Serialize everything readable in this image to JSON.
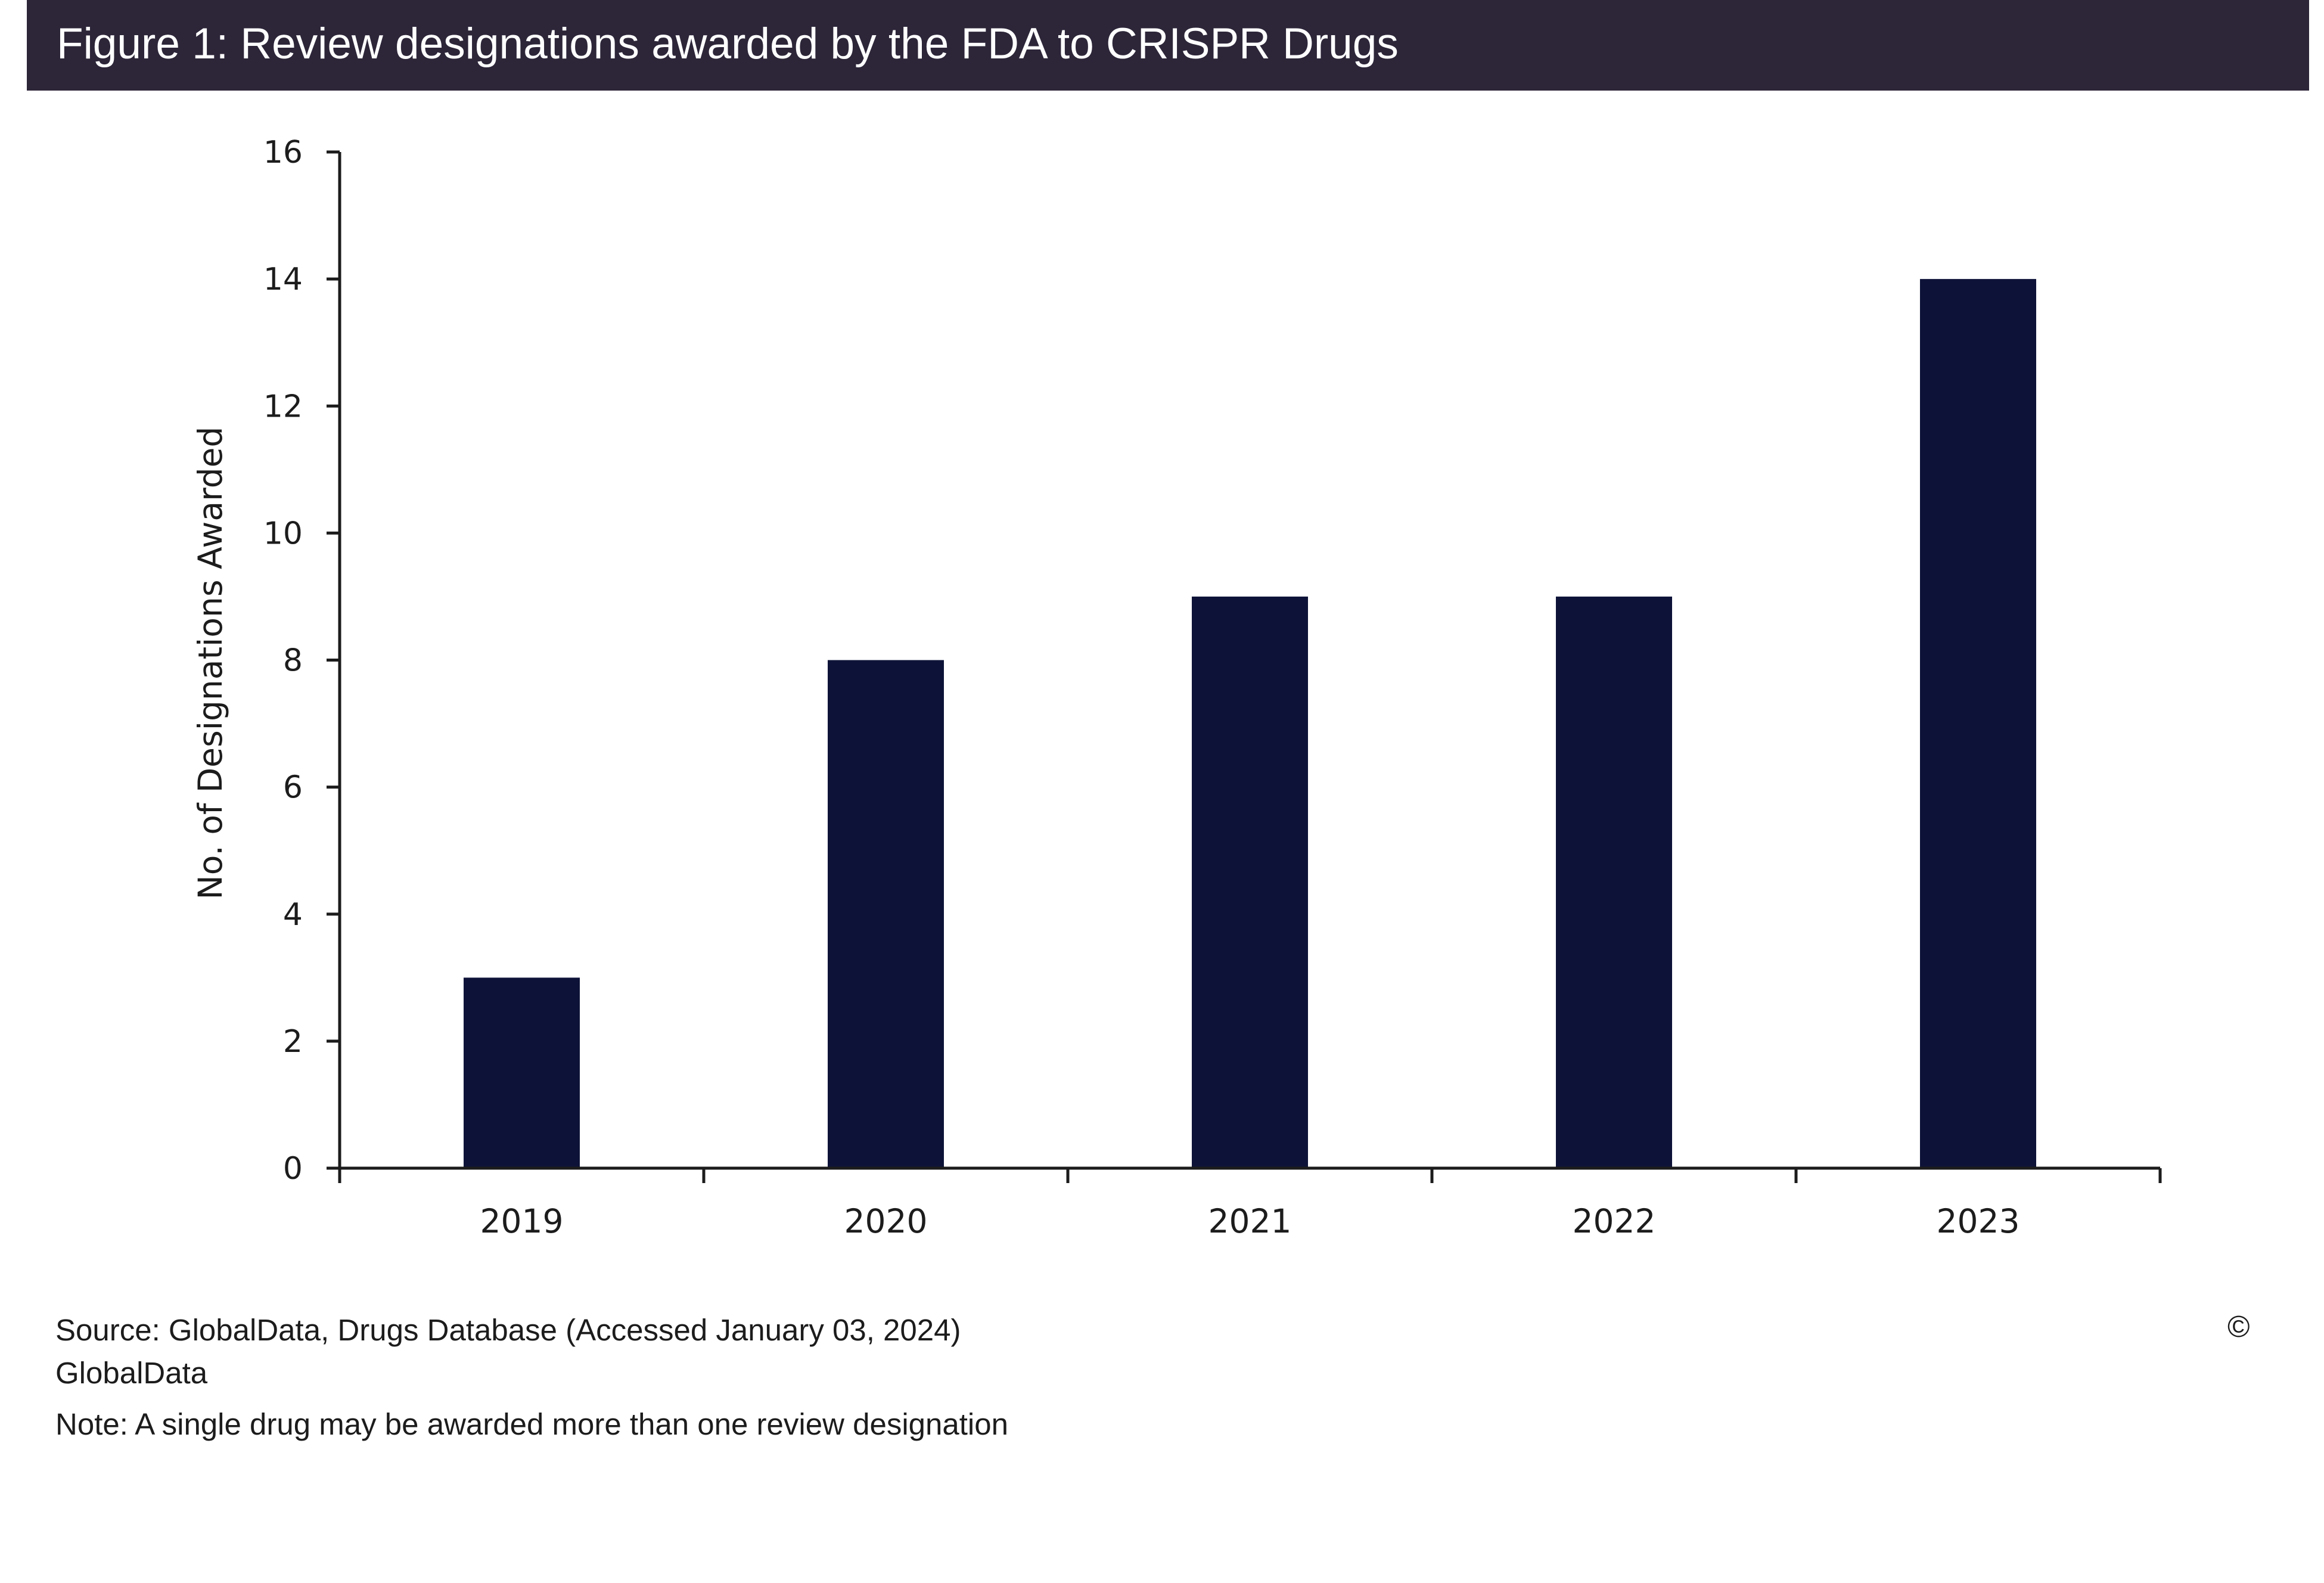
{
  "header": {
    "title": "Figure 1: Review designations awarded by the FDA to CRISPR Drugs"
  },
  "chart_data": {
    "type": "bar",
    "categories": [
      "2019",
      "2020",
      "2021",
      "2022",
      "2023"
    ],
    "values": [
      3,
      8,
      9,
      9,
      14
    ],
    "title": "Figure 1: Review designations awarded by the FDA to CRISPR Drugs",
    "xlabel": "",
    "ylabel": "No. of Designations Awarded",
    "ylim": [
      0,
      16
    ],
    "yticks": [
      "0",
      "2",
      "4",
      "6",
      "8",
      "10",
      "12",
      "14",
      "16"
    ],
    "grid": false,
    "legend": "none",
    "bar_color": "#0d1338"
  },
  "footer": {
    "source": "Source: GlobalData, Drugs Database (Accessed January 03, 2024) GlobalData",
    "copyright": "©",
    "note": "Note: A single drug may be awarded more than one review designation"
  }
}
